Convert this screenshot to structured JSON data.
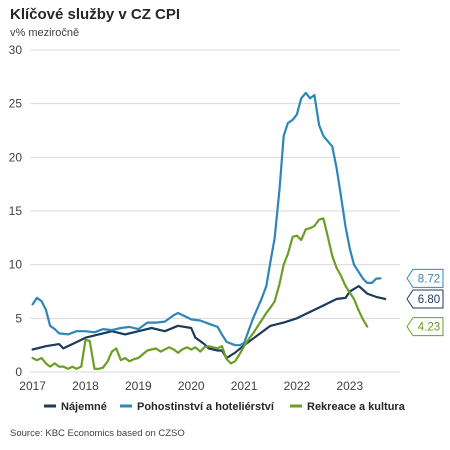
{
  "title": "Klíčové služby v CZ CPI",
  "subtitle": "v% meziročně",
  "source": "Source: KBC Economics based on CZSO",
  "chart_data": {
    "type": "line",
    "ylim": [
      0,
      30
    ],
    "xlim": [
      2016.95,
      2023.95
    ],
    "y_ticks": [
      0,
      5,
      10,
      15,
      20,
      25,
      30
    ],
    "x_ticks": [
      {
        "value": 2017,
        "label": "2017"
      },
      {
        "value": 2018,
        "label": "2018"
      },
      {
        "value": 2019,
        "label": "2019"
      },
      {
        "value": 2020,
        "label": "2020"
      },
      {
        "value": 2021,
        "label": "2021"
      },
      {
        "value": 2022,
        "label": "2022"
      },
      {
        "value": 2023,
        "label": "2023"
      }
    ],
    "grid": "horizontal",
    "legend_position": "bottom",
    "series": [
      {
        "name": "Nájemné",
        "color": "#1b3a5c",
        "end_label": "6.80",
        "points": [
          [
            2017.0,
            2.1
          ],
          [
            2017.25,
            2.4
          ],
          [
            2017.5,
            2.6
          ],
          [
            2017.58,
            2.2
          ],
          [
            2017.75,
            2.6
          ],
          [
            2018.0,
            3.2
          ],
          [
            2018.25,
            3.5
          ],
          [
            2018.5,
            3.8
          ],
          [
            2018.75,
            3.5
          ],
          [
            2019.0,
            3.8
          ],
          [
            2019.25,
            4.1
          ],
          [
            2019.5,
            3.8
          ],
          [
            2019.75,
            4.3
          ],
          [
            2020.0,
            4.1
          ],
          [
            2020.08,
            3.2
          ],
          [
            2020.25,
            2.6
          ],
          [
            2020.33,
            2.2
          ],
          [
            2020.5,
            2.0
          ],
          [
            2020.58,
            2.0
          ],
          [
            2020.67,
            1.3
          ],
          [
            2020.83,
            1.8
          ],
          [
            2021.0,
            2.5
          ],
          [
            2021.25,
            3.4
          ],
          [
            2021.5,
            4.3
          ],
          [
            2021.75,
            4.6
          ],
          [
            2022.0,
            5.0
          ],
          [
            2022.25,
            5.6
          ],
          [
            2022.5,
            6.2
          ],
          [
            2022.75,
            6.8
          ],
          [
            2022.92,
            6.9
          ],
          [
            2023.0,
            7.5
          ],
          [
            2023.17,
            8.0
          ],
          [
            2023.33,
            7.3
          ],
          [
            2023.5,
            7.0
          ],
          [
            2023.67,
            6.8
          ]
        ]
      },
      {
        "name": "Pohostinství a hoteliérství",
        "color": "#2e86b8",
        "end_label": "8.72",
        "points": [
          [
            2017.0,
            6.3
          ],
          [
            2017.08,
            6.9
          ],
          [
            2017.17,
            6.6
          ],
          [
            2017.25,
            5.8
          ],
          [
            2017.33,
            4.3
          ],
          [
            2017.42,
            4.0
          ],
          [
            2017.5,
            3.6
          ],
          [
            2017.67,
            3.5
          ],
          [
            2017.83,
            3.8
          ],
          [
            2018.0,
            3.8
          ],
          [
            2018.17,
            3.7
          ],
          [
            2018.33,
            4.0
          ],
          [
            2018.5,
            3.9
          ],
          [
            2018.67,
            4.1
          ],
          [
            2018.83,
            4.2
          ],
          [
            2019.0,
            4.0
          ],
          [
            2019.17,
            4.6
          ],
          [
            2019.33,
            4.6
          ],
          [
            2019.5,
            4.7
          ],
          [
            2019.67,
            5.3
          ],
          [
            2019.75,
            5.5
          ],
          [
            2019.92,
            5.1
          ],
          [
            2020.0,
            4.9
          ],
          [
            2020.17,
            4.8
          ],
          [
            2020.33,
            4.5
          ],
          [
            2020.5,
            4.2
          ],
          [
            2020.58,
            3.5
          ],
          [
            2020.67,
            2.8
          ],
          [
            2020.83,
            2.5
          ],
          [
            2020.92,
            2.5
          ],
          [
            2021.0,
            2.7
          ],
          [
            2021.17,
            5.0
          ],
          [
            2021.33,
            6.8
          ],
          [
            2021.42,
            8.0
          ],
          [
            2021.5,
            10.3
          ],
          [
            2021.58,
            12.5
          ],
          [
            2021.67,
            17.0
          ],
          [
            2021.75,
            22.0
          ],
          [
            2021.83,
            23.2
          ],
          [
            2021.92,
            23.5
          ],
          [
            2022.0,
            24.0
          ],
          [
            2022.08,
            25.5
          ],
          [
            2022.17,
            26.0
          ],
          [
            2022.25,
            25.5
          ],
          [
            2022.33,
            25.8
          ],
          [
            2022.42,
            23.0
          ],
          [
            2022.5,
            22.0
          ],
          [
            2022.67,
            21.0
          ],
          [
            2022.75,
            19.0
          ],
          [
            2022.83,
            16.5
          ],
          [
            2022.92,
            13.5
          ],
          [
            2023.0,
            11.5
          ],
          [
            2023.08,
            10.0
          ],
          [
            2023.25,
            8.7
          ],
          [
            2023.33,
            8.3
          ],
          [
            2023.42,
            8.3
          ],
          [
            2023.5,
            8.7
          ],
          [
            2023.58,
            8.72
          ]
        ]
      },
      {
        "name": "Rekreace a kultura",
        "color": "#6a9e24",
        "end_label": "4.23",
        "points": [
          [
            2017.0,
            1.3
          ],
          [
            2017.08,
            1.1
          ],
          [
            2017.17,
            1.3
          ],
          [
            2017.25,
            0.8
          ],
          [
            2017.33,
            0.5
          ],
          [
            2017.42,
            0.8
          ],
          [
            2017.5,
            0.5
          ],
          [
            2017.58,
            0.5
          ],
          [
            2017.67,
            0.3
          ],
          [
            2017.75,
            0.5
          ],
          [
            2017.83,
            0.3
          ],
          [
            2017.92,
            0.5
          ],
          [
            2018.0,
            3.0
          ],
          [
            2018.08,
            2.9
          ],
          [
            2018.17,
            0.3
          ],
          [
            2018.25,
            0.3
          ],
          [
            2018.33,
            0.4
          ],
          [
            2018.42,
            1.0
          ],
          [
            2018.5,
            1.9
          ],
          [
            2018.58,
            2.2
          ],
          [
            2018.67,
            1.1
          ],
          [
            2018.75,
            1.3
          ],
          [
            2018.83,
            1.0
          ],
          [
            2018.92,
            1.2
          ],
          [
            2019.0,
            1.3
          ],
          [
            2019.17,
            2.0
          ],
          [
            2019.33,
            2.2
          ],
          [
            2019.42,
            1.9
          ],
          [
            2019.58,
            2.3
          ],
          [
            2019.67,
            2.1
          ],
          [
            2019.75,
            1.8
          ],
          [
            2019.83,
            2.1
          ],
          [
            2019.92,
            2.3
          ],
          [
            2020.0,
            2.1
          ],
          [
            2020.08,
            2.3
          ],
          [
            2020.17,
            1.9
          ],
          [
            2020.25,
            2.3
          ],
          [
            2020.33,
            2.4
          ],
          [
            2020.5,
            2.2
          ],
          [
            2020.58,
            2.4
          ],
          [
            2020.67,
            1.2
          ],
          [
            2020.75,
            0.8
          ],
          [
            2020.83,
            1.0
          ],
          [
            2020.92,
            1.7
          ],
          [
            2021.0,
            2.4
          ],
          [
            2021.08,
            3.0
          ],
          [
            2021.17,
            3.6
          ],
          [
            2021.25,
            4.2
          ],
          [
            2021.33,
            4.8
          ],
          [
            2021.42,
            5.5
          ],
          [
            2021.5,
            6.0
          ],
          [
            2021.58,
            6.6
          ],
          [
            2021.67,
            8.2
          ],
          [
            2021.75,
            10.0
          ],
          [
            2021.83,
            11.0
          ],
          [
            2021.92,
            12.6
          ],
          [
            2022.0,
            12.7
          ],
          [
            2022.08,
            12.3
          ],
          [
            2022.17,
            13.3
          ],
          [
            2022.25,
            13.4
          ],
          [
            2022.33,
            13.6
          ],
          [
            2022.42,
            14.2
          ],
          [
            2022.5,
            14.3
          ],
          [
            2022.58,
            12.7
          ],
          [
            2022.67,
            10.8
          ],
          [
            2022.75,
            9.7
          ],
          [
            2022.83,
            9.0
          ],
          [
            2022.92,
            8.0
          ],
          [
            2023.0,
            7.4
          ],
          [
            2023.08,
            6.8
          ],
          [
            2023.17,
            5.7
          ],
          [
            2023.25,
            4.9
          ],
          [
            2023.33,
            4.23
          ]
        ]
      }
    ]
  }
}
